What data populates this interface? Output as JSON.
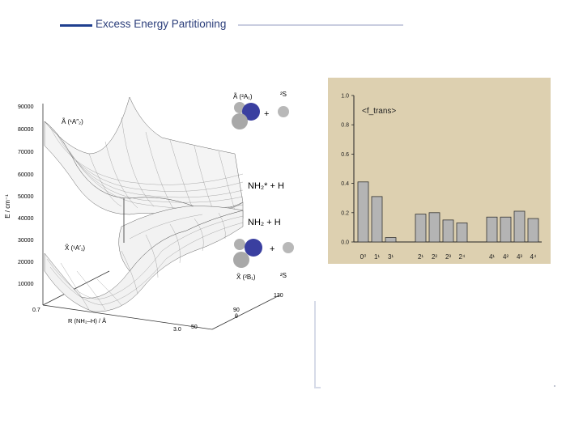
{
  "header": {
    "title": "Excess Energy Partitioning",
    "accent_color": "#1f3f8f"
  },
  "pes": {
    "y_axis_label": "E / cm⁻¹",
    "y_ticks": [
      "90000",
      "80000",
      "70000",
      "60000",
      "50000",
      "40000",
      "30000",
      "20000",
      "10000"
    ],
    "x_axis_label": "R (NH₂–H) / Å",
    "x_tick_start": "0.7",
    "x_tick_end": "3.0",
    "angle_ticks": [
      "130",
      "90",
      "50"
    ],
    "angle_symbol": "θ",
    "upper_state_label": "Ã (¹A″₂)",
    "lower_state_label": "X̃ (¹A′₁)",
    "upper_asymptote": "NH₂* + H",
    "lower_asymptote": "NH₂  + H",
    "upper_product_state": "Ã (²A₁)",
    "lower_product_state": "X̃ (²B₁)",
    "h_atom_state_top": "²S",
    "h_atom_state_bottom": "²S",
    "plus_sign": "+",
    "nitrogen_color": "#3a3fa0"
  },
  "chart_data": {
    "type": "bar",
    "legend_label": "<f_trans>",
    "ylim": [
      0,
      1.0
    ],
    "y_ticks": [
      "1.0",
      "0.8",
      "0.6",
      "0.4",
      "0.2",
      "0.0"
    ],
    "categories": [
      "0⁰",
      "1¹",
      "3¹",
      "2¹",
      "2²",
      "2³",
      "2⁴",
      "4¹",
      "4²",
      "4³",
      "4⁴"
    ],
    "values": [
      0.41,
      0.31,
      0.03,
      0.19,
      0.2,
      0.15,
      0.13,
      0.17,
      0.17,
      0.21,
      0.16
    ],
    "groups": [
      [
        0,
        1,
        2
      ],
      [
        3,
        4,
        5,
        6
      ],
      [
        7,
        8,
        9,
        10
      ]
    ],
    "grid": false,
    "bar_color": "#b4b4b4",
    "background_color": "#ddd0b0"
  }
}
